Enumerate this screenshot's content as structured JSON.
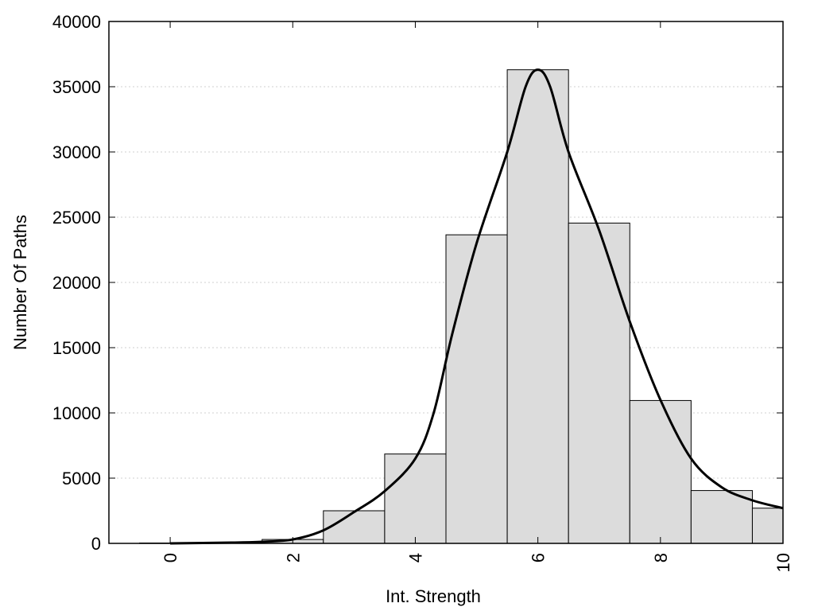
{
  "chart_data": {
    "type": "bar",
    "xlabel": "Int. Strength",
    "ylabel": "Number Of Paths",
    "xlim": [
      -1,
      10
    ],
    "ylim": [
      0,
      40000
    ],
    "x_ticks": [
      "0",
      "2",
      "4",
      "6",
      "8",
      "10"
    ],
    "y_ticks": [
      "0",
      "5000",
      "10000",
      "15000",
      "20000",
      "25000",
      "30000",
      "35000",
      "40000"
    ],
    "grid": "horizontal dotted",
    "bar_color": "#dcdcdc",
    "bar_edge_color": "#000000",
    "line_color": "#000000",
    "bars": [
      {
        "x": 0,
        "value": 30
      },
      {
        "x": 1,
        "value": 60
      },
      {
        "x": 2,
        "value": 300
      },
      {
        "x": 3,
        "value": 2500
      },
      {
        "x": 4,
        "value": 6850
      },
      {
        "x": 5,
        "value": 23650
      },
      {
        "x": 6,
        "value": 36300
      },
      {
        "x": 7,
        "value": 24550
      },
      {
        "x": 8,
        "value": 10950
      },
      {
        "x": 9,
        "value": 4050
      },
      {
        "x": 10,
        "value": 2700
      }
    ],
    "curve": [
      {
        "x": 0.0,
        "y": 0
      },
      {
        "x": 1.0,
        "y": 60
      },
      {
        "x": 1.5,
        "y": 120
      },
      {
        "x": 2.0,
        "y": 300
      },
      {
        "x": 2.5,
        "y": 1000
      },
      {
        "x": 3.0,
        "y": 2400
      },
      {
        "x": 3.5,
        "y": 4000
      },
      {
        "x": 4.0,
        "y": 6500
      },
      {
        "x": 4.3,
        "y": 10000
      },
      {
        "x": 4.6,
        "y": 16000
      },
      {
        "x": 5.0,
        "y": 23000
      },
      {
        "x": 5.5,
        "y": 30000
      },
      {
        "x": 5.8,
        "y": 35000
      },
      {
        "x": 6.0,
        "y": 36300
      },
      {
        "x": 6.2,
        "y": 35000
      },
      {
        "x": 6.5,
        "y": 30000
      },
      {
        "x": 7.0,
        "y": 24000
      },
      {
        "x": 7.5,
        "y": 17000
      },
      {
        "x": 8.0,
        "y": 11000
      },
      {
        "x": 8.5,
        "y": 6500
      },
      {
        "x": 9.0,
        "y": 4300
      },
      {
        "x": 9.5,
        "y": 3300
      },
      {
        "x": 10.0,
        "y": 2700
      }
    ]
  }
}
